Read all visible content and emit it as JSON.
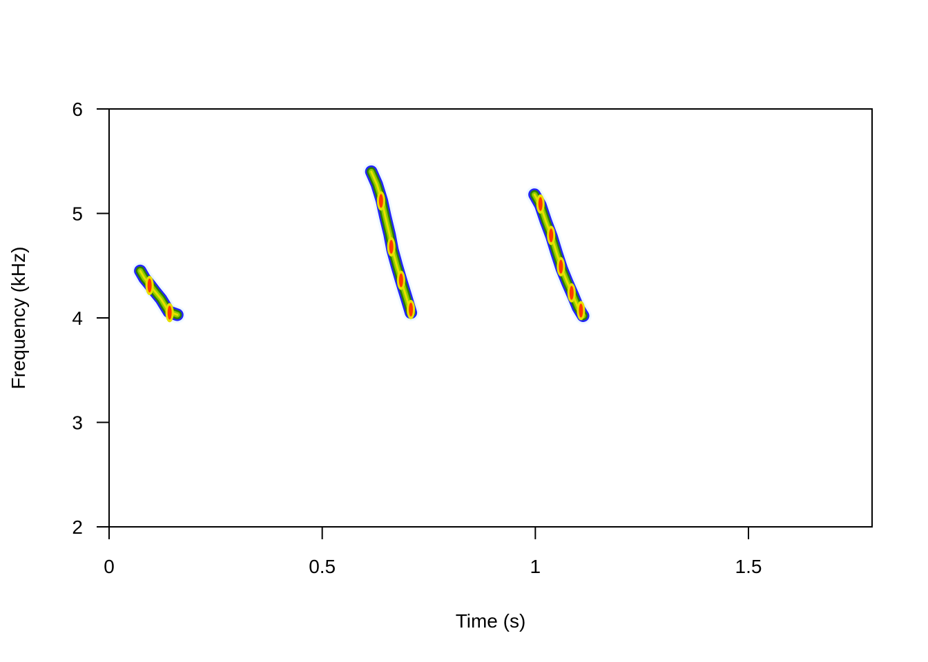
{
  "chart_data": {
    "type": "heatmap",
    "title": "",
    "xlabel": "Time (s)",
    "ylabel": "Frequency (kHz)",
    "xlim": [
      0,
      1.79
    ],
    "ylim": [
      2,
      6
    ],
    "x_ticks": [
      {
        "value": 0,
        "label": "0"
      },
      {
        "value": 0.5,
        "label": "0.5"
      },
      {
        "value": 1,
        "label": "1"
      },
      {
        "value": 1.5,
        "label": "1.5"
      }
    ],
    "y_ticks": [
      {
        "value": 2,
        "label": "2"
      },
      {
        "value": 3,
        "label": "3"
      },
      {
        "value": 4,
        "label": "4"
      },
      {
        "value": 5,
        "label": "5"
      },
      {
        "value": 6,
        "label": "6"
      }
    ],
    "grid": false,
    "legend": "none",
    "color_scale": [
      "#dbeeff",
      "#2222ff",
      "#2e7d00",
      "#8ccc00",
      "#e8e000",
      "#ff3a00"
    ],
    "notes": [
      {
        "id": "note-1",
        "points": [
          [
            0.073,
            4.45
          ],
          [
            0.083,
            4.38
          ],
          [
            0.095,
            4.32
          ],
          [
            0.108,
            4.25
          ],
          [
            0.122,
            4.18
          ],
          [
            0.14,
            4.06
          ],
          [
            0.16,
            4.03
          ]
        ],
        "peaks": [
          [
            0.095,
            4.31
          ],
          [
            0.142,
            4.05
          ]
        ]
      },
      {
        "id": "note-2",
        "points": [
          [
            0.615,
            5.4
          ],
          [
            0.628,
            5.28
          ],
          [
            0.64,
            5.12
          ],
          [
            0.648,
            4.97
          ],
          [
            0.658,
            4.8
          ],
          [
            0.665,
            4.65
          ],
          [
            0.675,
            4.5
          ],
          [
            0.685,
            4.36
          ],
          [
            0.697,
            4.2
          ],
          [
            0.708,
            4.05
          ]
        ],
        "peaks": [
          [
            0.638,
            5.12
          ],
          [
            0.662,
            4.68
          ],
          [
            0.685,
            4.36
          ],
          [
            0.708,
            4.08
          ]
        ]
      },
      {
        "id": "note-3",
        "points": [
          [
            0.998,
            5.18
          ],
          [
            1.012,
            5.08
          ],
          [
            1.025,
            4.92
          ],
          [
            1.038,
            4.78
          ],
          [
            1.05,
            4.62
          ],
          [
            1.062,
            4.47
          ],
          [
            1.075,
            4.34
          ],
          [
            1.088,
            4.22
          ],
          [
            1.1,
            4.1
          ],
          [
            1.112,
            4.02
          ]
        ],
        "peaks": [
          [
            1.012,
            5.09
          ],
          [
            1.037,
            4.79
          ],
          [
            1.06,
            4.49
          ],
          [
            1.085,
            4.24
          ],
          [
            1.107,
            4.07
          ]
        ]
      }
    ]
  }
}
